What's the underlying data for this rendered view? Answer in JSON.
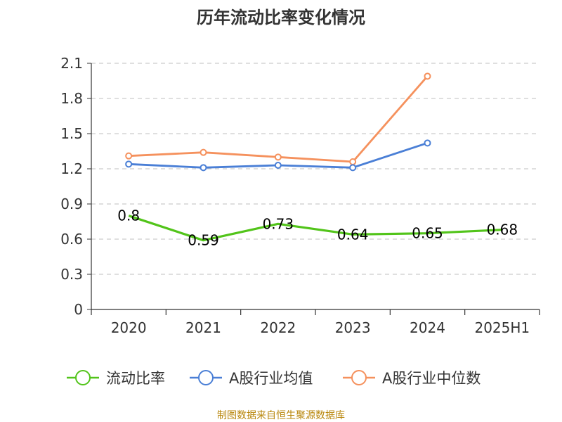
{
  "chart_data": {
    "type": "line",
    "title": "历年流动比率变化情况",
    "categories": [
      "2020",
      "2021",
      "2022",
      "2023",
      "2024",
      "2025H1"
    ],
    "ylim": [
      0,
      2.1
    ],
    "yticks": [
      "0",
      "0.3",
      "0.6",
      "0.9",
      "1.2",
      "1.5",
      "1.8",
      "2.1"
    ],
    "grid": true,
    "legend_position": "bottom",
    "series": [
      {
        "name": "流动比率",
        "color": "#52c41a",
        "values": [
          0.8,
          0.59,
          0.73,
          0.64,
          0.65,
          0.68
        ],
        "labels": [
          "0.8",
          "0.59",
          "0.73",
          "0.64",
          "0.65",
          "0.68"
        ]
      },
      {
        "name": "A股行业均值",
        "color": "#4a7fd6",
        "values": [
          1.24,
          1.21,
          1.23,
          1.21,
          1.42,
          null
        ]
      },
      {
        "name": "A股行业中位数",
        "color": "#f5915d",
        "values": [
          1.31,
          1.34,
          1.3,
          1.26,
          1.99,
          null
        ]
      }
    ],
    "source": "制图数据来自恒生聚源数据库"
  }
}
